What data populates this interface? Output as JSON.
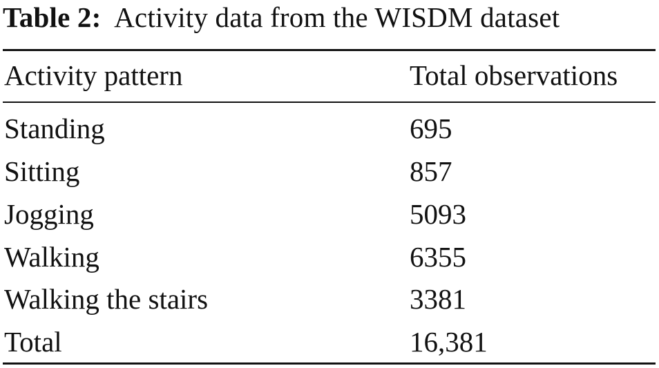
{
  "caption": {
    "label": "Table 2:",
    "text": "Activity data from the WISDM dataset"
  },
  "table": {
    "headers": [
      "Activity pattern",
      "Total observations"
    ],
    "rows": [
      [
        "Standing",
        "695"
      ],
      [
        "Sitting",
        "857"
      ],
      [
        "Jogging",
        "5093"
      ],
      [
        "Walking",
        "6355"
      ],
      [
        "Walking the stairs",
        "3381"
      ],
      [
        "Total",
        "16,381"
      ]
    ]
  }
}
